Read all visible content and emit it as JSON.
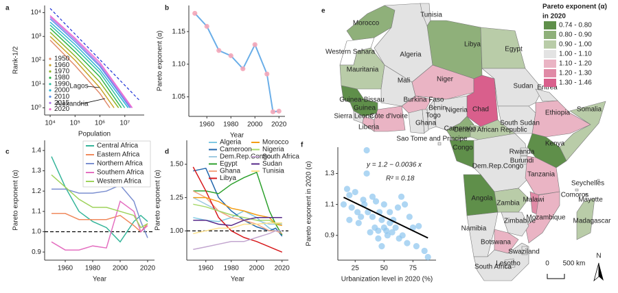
{
  "chart_data": [
    {
      "type": "loglog",
      "panel": "a",
      "x_label": "Population",
      "y_label": "Rank-1/2",
      "log_x": true,
      "log_y": true,
      "xlim": [
        6000,
        60000000
      ],
      "ylim": [
        0.5,
        20000
      ],
      "xticks": [
        {
          "value": 10000,
          "label": "10⁴"
        },
        {
          "value": 100000,
          "label": "10⁵"
        },
        {
          "value": 1000000,
          "label": "10⁶"
        },
        {
          "value": 10000000,
          "label": "10⁷"
        }
      ],
      "yticks": [
        {
          "value": 1,
          "label": "10⁰"
        },
        {
          "value": 10,
          "label": "10¹"
        },
        {
          "value": 100,
          "label": "10²"
        },
        {
          "value": 1000,
          "label": "10³"
        },
        {
          "value": 10000,
          "label": "10⁴"
        }
      ],
      "legend": "bottom-left",
      "series": [
        {
          "name": "1950",
          "color": "#e08a6a",
          "x": [
            10000,
            100000,
            1000000,
            2500000
          ],
          "values": [
            700,
            60,
            4,
            1
          ]
        },
        {
          "name": "1960",
          "color": "#c9a227",
          "x": [
            10000,
            100000,
            1000000,
            3700000
          ],
          "values": [
            1000,
            100,
            7,
            1
          ]
        },
        {
          "name": "1970",
          "color": "#8fb52a",
          "x": [
            10000,
            100000,
            1000000,
            5600000
          ],
          "values": [
            1500,
            150,
            12,
            1
          ]
        },
        {
          "name": "1980",
          "color": "#2fb54a",
          "x": [
            10000,
            100000,
            1000000,
            7300000
          ],
          "values": [
            2200,
            230,
            20,
            1
          ]
        },
        {
          "name": "1990",
          "color": "#2fbfa0",
          "x": [
            10000,
            100000,
            1000000,
            9900000
          ],
          "values": [
            3000,
            330,
            30,
            1
          ]
        },
        {
          "name": "2000",
          "color": "#2fb5d6",
          "x": [
            10000,
            100000,
            1000000,
            13600000
          ],
          "values": [
            4000,
            460,
            40,
            1
          ]
        },
        {
          "name": "2010",
          "color": "#5a8ee8",
          "x": [
            10000,
            100000,
            1000000,
            16000000
          ],
          "values": [
            5500,
            600,
            55,
            1
          ]
        },
        {
          "name": "2015",
          "color": "#b07ae8",
          "x": [
            10000,
            100000,
            1000000,
            18000000
          ],
          "values": [
            6500,
            720,
            65,
            1
          ]
        },
        {
          "name": "2020",
          "color": "#f06ad0",
          "x": [
            10000,
            100000,
            1000000,
            20000000
          ],
          "values": [
            7500,
            850,
            80,
            1
          ]
        }
      ],
      "reference": {
        "color": "#1a2fd6",
        "x": [
          10000,
          40000000
        ],
        "values": [
          15000,
          2
        ]
      },
      "annotations": [
        "Lagos",
        "Alexandria"
      ]
    },
    {
      "type": "line",
      "panel": "b",
      "x_label": "Year",
      "y_label": "Pareto exponent (α)",
      "x": [
        1950,
        1960,
        1970,
        1980,
        1990,
        2000,
        2010,
        2015,
        2020
      ],
      "xlim": [
        1945,
        2025
      ],
      "xticks": [
        1960,
        1980,
        2000,
        2020
      ],
      "ylim": [
        1.02,
        1.19
      ],
      "yticks": [
        1.05,
        {
          "value": 1.1,
          "label": "1.10"
        },
        1.15
      ],
      "markers": true,
      "marker_color": "#f4a6b8",
      "series": [
        {
          "color": "#6aaee8",
          "values": [
            1.178,
            1.158,
            1.121,
            1.113,
            1.093,
            1.13,
            1.085,
            1.027,
            1.028
          ]
        }
      ]
    },
    {
      "type": "line",
      "panel": "c",
      "x_label": "Year",
      "y_label": "Pareto exponent (α)",
      "x": [
        1950,
        1960,
        1970,
        1980,
        1990,
        2000,
        2010,
        2015,
        2020
      ],
      "xlim": [
        1945,
        2025
      ],
      "xticks": [
        1960,
        1980,
        2000,
        2020
      ],
      "ylim": [
        0.86,
        1.45
      ],
      "yticks": [
        0.9,
        {
          "value": 1,
          "label": "1.0"
        },
        1.1,
        1.2,
        1.3,
        1.4
      ],
      "refline": 1,
      "legend": "top-right",
      "legend_columns": 1,
      "series": [
        {
          "name": "Central Africa",
          "color": "#35b59a",
          "values": [
            1.37,
            1.22,
            1.1,
            1.05,
            1.02,
            0.95,
            1.05,
            1.08,
            1.05
          ]
        },
        {
          "name": "Eastern Africa",
          "color": "#f08a5d",
          "values": [
            1.09,
            1.09,
            1.06,
            1.06,
            1.06,
            1.08,
            1.03,
            1.0,
            1.04
          ]
        },
        {
          "name": "Northern Africa",
          "color": "#7b8fd0",
          "values": [
            1.21,
            1.21,
            1.19,
            1.19,
            1.2,
            1.23,
            1.15,
            1.05,
            0.97
          ]
        },
        {
          "name": "Southern Africa",
          "color": "#e46fc0",
          "values": [
            0.95,
            0.91,
            0.91,
            0.93,
            0.92,
            1.15,
            1.1,
            1.0,
            1.03
          ]
        },
        {
          "name": "Western Africa",
          "color": "#9ed25a",
          "values": [
            1.28,
            1.22,
            1.16,
            1.12,
            1.12,
            1.1,
            1.08,
            1.02,
            1.04
          ]
        }
      ]
    },
    {
      "type": "line",
      "panel": "d",
      "x_label": "Year",
      "y_label": "Pareto exponent (α)",
      "x": [
        1950,
        1960,
        1970,
        1980,
        1990,
        2000,
        2010,
        2015,
        2020
      ],
      "xlim": [
        1945,
        2025
      ],
      "xticks": [
        1960,
        1980,
        2000,
        2020
      ],
      "ylim": [
        0.78,
        1.68
      ],
      "yticks": [
        {
          "value": 1,
          "label": "1.00"
        },
        1.25,
        {
          "value": 1.5,
          "label": "1.50"
        }
      ],
      "refline": 1,
      "legend": "top-right",
      "legend_columns": 2,
      "series": [
        {
          "name": "Algeria",
          "color": "#7ec8e3",
          "values": [
            1.1,
            1.08,
            1.07,
            1.1,
            1.15,
            1.1,
            1.02,
            1.0,
            0.98
          ]
        },
        {
          "name": "Cameroon",
          "color": "#2166ac",
          "values": [
            1.45,
            1.47,
            1.25,
            1.15,
            1.08,
            1.03,
            1.0,
            1.02,
            0.96
          ]
        },
        {
          "name": "Dem.Rep.Congo",
          "color": "#9ecae1",
          "values": [
            1.25,
            1.2,
            1.15,
            1.12,
            1.1,
            1.08,
            1.05,
            1.05,
            1.05
          ]
        },
        {
          "name": "Egypt",
          "color": "#2ca02c",
          "values": [
            1.3,
            1.3,
            1.28,
            1.35,
            1.4,
            1.44,
            1.15,
            1.05,
            0.97
          ]
        },
        {
          "name": "Ghana",
          "color": "#f4a582",
          "values": [
            1.3,
            1.25,
            1.15,
            1.1,
            1.08,
            1.05,
            1.0,
            1.0,
            0.98
          ]
        },
        {
          "name": "Libya",
          "color": "#d7191c",
          "values": [
            1.48,
            1.3,
            1.1,
            1.0,
            0.95,
            0.92,
            0.88,
            0.86,
            0.84
          ]
        },
        {
          "name": "Morocco",
          "color": "#f39c12",
          "values": [
            1.25,
            1.25,
            1.22,
            1.17,
            1.15,
            1.12,
            1.1,
            1.05,
            1.04
          ]
        },
        {
          "name": "Nigeria",
          "color": "#a6d96a",
          "values": [
            1.2,
            1.18,
            1.15,
            1.12,
            1.1,
            1.08,
            1.08,
            1.05,
            1.06
          ]
        },
        {
          "name": "South Africa",
          "color": "#c2a5cf",
          "values": [
            0.86,
            0.88,
            0.9,
            0.92,
            0.92,
            0.95,
            0.98,
            1.0,
            1.0
          ]
        },
        {
          "name": "Sudan",
          "color": "#542788",
          "values": [
            1.08,
            1.08,
            1.05,
            1.04,
            1.08,
            1.1,
            1.1,
            1.1,
            1.1
          ]
        },
        {
          "name": "Tunisia",
          "color": "#fee08b",
          "values": [
            0.98,
            1.0,
            1.02,
            1.02,
            1.05,
            1.05,
            1.06,
            1.06,
            1.06
          ]
        }
      ]
    },
    {
      "type": "map",
      "panel": "e",
      "legend_title": [
        "Pareto exponent (α)",
        "in 2020"
      ],
      "no_data_color": "#ffffff",
      "classes": [
        {
          "label": "0.74 - 0.80",
          "color": "#5f8f4a"
        },
        {
          "label": "0.80 - 0.90",
          "color": "#8fb07a"
        },
        {
          "label": "0.90 - 1.00",
          "color": "#b9cca8"
        },
        {
          "label": "1.00 - 1.10",
          "color": "#e3e3e3"
        },
        {
          "label": "1.10 - 1.20",
          "color": "#eab4c4"
        },
        {
          "label": "1.20 - 1.30",
          "color": "#e08aa6"
        },
        {
          "label": "1.30 - 1.46",
          "color": "#d95f8c"
        }
      ],
      "countries": [
        {
          "name": "Morocco",
          "class": 1
        },
        {
          "name": "Western Sahara",
          "class": null
        },
        {
          "name": "Algeria",
          "class": 3
        },
        {
          "name": "Tunisia",
          "class": 3
        },
        {
          "name": "Libya",
          "class": 1
        },
        {
          "name": "Egypt",
          "class": 2
        },
        {
          "name": "Mauritania",
          "class": 2
        },
        {
          "name": "Mali",
          "class": 3
        },
        {
          "name": "Niger",
          "class": 4
        },
        {
          "name": "Chad",
          "class": 6
        },
        {
          "name": "Sudan",
          "class": 3
        },
        {
          "name": "Eritrea",
          "class": 3
        },
        {
          "name": "South Sudan",
          "class": 3
        },
        {
          "name": "Ethiopia",
          "class": 4
        },
        {
          "name": "Somalia",
          "class": 2
        },
        {
          "name": "Guinea-Bissau",
          "class": 0
        },
        {
          "name": "Guinea",
          "class": 0
        },
        {
          "name": "Sierra Leone",
          "class": 3
        },
        {
          "name": "Liberia",
          "class": 4
        },
        {
          "name": "Côte d'Ivoire",
          "class": 4
        },
        {
          "name": "Burkina Faso",
          "class": 4
        },
        {
          "name": "Ghana",
          "class": 3
        },
        {
          "name": "Togo",
          "class": 3
        },
        {
          "name": "Benin",
          "class": 3
        },
        {
          "name": "Nigeria",
          "class": 3
        },
        {
          "name": "Cameroon",
          "class": 1
        },
        {
          "name": "Central African Republic",
          "class": 2
        },
        {
          "name": "Congo",
          "class": 0
        },
        {
          "name": "Dem.Rep.Congo",
          "class": 3
        },
        {
          "name": "Kenya",
          "class": 0
        },
        {
          "name": "Rwanda",
          "class": 3
        },
        {
          "name": "Burundi",
          "class": 3
        },
        {
          "name": "Tanzania",
          "class": 4
        },
        {
          "name": "Angola",
          "class": 0
        },
        {
          "name": "Zambia",
          "class": 2
        },
        {
          "name": "Malawi",
          "class": 5
        },
        {
          "name": "Mozambique",
          "class": 4
        },
        {
          "name": "Zimbabwe",
          "class": 3
        },
        {
          "name": "Namibia",
          "class": 3
        },
        {
          "name": "Botswana",
          "class": 4
        },
        {
          "name": "South Africa",
          "class": 3
        },
        {
          "name": "Swaziland",
          "class": 3
        },
        {
          "name": "Lesotho",
          "class": 3
        },
        {
          "name": "Madagascar",
          "class": 2
        },
        {
          "name": "Sao Tome and Principe",
          "class": 3
        },
        {
          "name": "Seychelles",
          "class": 3
        },
        {
          "name": "Comoros",
          "class": 3
        },
        {
          "name": "Mayotte",
          "class": 3
        }
      ],
      "scale_bar": [
        "0",
        "500 km"
      ],
      "north": "N"
    },
    {
      "type": "scatter",
      "panel": "f",
      "x_label": "Urbanization level in 2020 (%)",
      "y_label": "Pareto exponent in 2020 (α)",
      "xlim": [
        10,
        95
      ],
      "xticks": [
        25,
        50,
        75
      ],
      "ylim": [
        0.74,
        1.47
      ],
      "yticks": [
        0.9,
        1.1,
        1.3
      ],
      "color": "#8cc4ee",
      "x": [
        15,
        18,
        20,
        22,
        25,
        27,
        28,
        30,
        32,
        33,
        35,
        36,
        38,
        40,
        40,
        42,
        43,
        45,
        45,
        46,
        48,
        50,
        50,
        52,
        53,
        55,
        55,
        57,
        58,
        60,
        62,
        63,
        65,
        66,
        68,
        70,
        72,
        75,
        78,
        80,
        85,
        88,
        20,
        35,
        48
      ],
      "values": [
        1.1,
        1.2,
        1.16,
        1.08,
        1.18,
        1.05,
        0.98,
        1.02,
        1.13,
        1.1,
        1.3,
        1.05,
        0.92,
        1.15,
        1.02,
        0.95,
        1.12,
        0.93,
        0.88,
        1.05,
        1.0,
        1.1,
        0.95,
        0.93,
        0.9,
        1.05,
        0.98,
        0.92,
        1.0,
        0.95,
        1.08,
        0.88,
        1.15,
        0.9,
        1.1,
        0.85,
        1.02,
        0.95,
        0.83,
        0.96,
        0.8,
        0.76,
        1.0,
        1.45,
        0.83
      ],
      "regression": {
        "intercept": 1.2,
        "slope": -0.0036,
        "color": "#000000"
      },
      "equation": "y = 1.2 − 0.0036 x",
      "r_squared": "R² = 0.18"
    }
  ]
}
